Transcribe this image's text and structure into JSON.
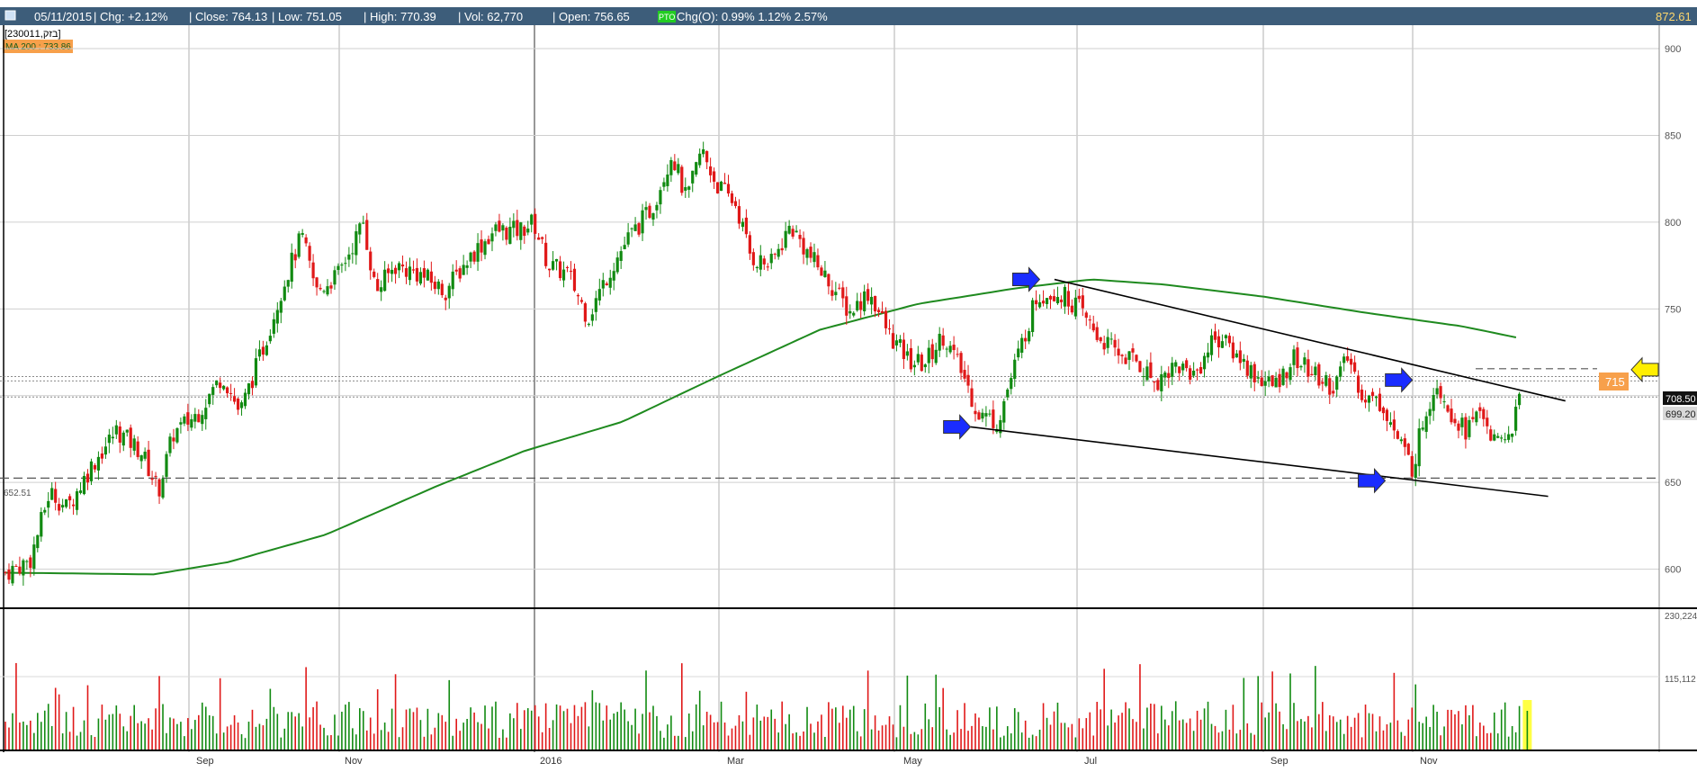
{
  "header": {
    "date": "05/11/2015",
    "chg": "| Chg: +2.12%",
    "close": "| Close: 764.13",
    "low": "| Low: 751.05",
    "high": "| High: 770.39",
    "vol": "| Vol: 62,770",
    "open": "| Open: 756.65",
    "pro_badge": "PTO",
    "chg_o": "Chg(O): 0.99% 1.12% 2.57%",
    "current_price": "872.61"
  },
  "legend": {
    "symbol": "[230011,בזק]",
    "ma_label": "MA 200 : 733.86"
  },
  "price_labels": {
    "last_price": "708.50",
    "level_699": "699.20",
    "target": "715",
    "support": "652.51"
  },
  "volume_labels": {
    "top": "230,224",
    "mid": "115,112"
  },
  "colors": {
    "up": "#118a11",
    "down": "#e01818",
    "ma": "#1f8a1f",
    "header_bg": "#3d5d7a",
    "arrow_blue": "#1a2cff",
    "arrow_yellow": "#ffee00",
    "target_box": "#f7a04b"
  },
  "chart_data": {
    "type": "candlestick",
    "series_description": "daily OHLC with volume and 200-day moving average",
    "x_ticks": [
      "Sep",
      "Nov",
      "2016",
      "Mar",
      "May",
      "Jul",
      "Sep",
      "Nov"
    ],
    "y_ticks": [
      600,
      650,
      700,
      750,
      800,
      850,
      900
    ],
    "ylim": [
      580,
      910
    ],
    "volume_ticks": [
      "115,112",
      "230,224"
    ],
    "price_anchors": [
      {
        "d": 0,
        "p": 598
      },
      {
        "d": 10,
        "p": 605
      },
      {
        "d": 18,
        "p": 645
      },
      {
        "d": 25,
        "p": 635
      },
      {
        "d": 35,
        "p": 660
      },
      {
        "d": 45,
        "p": 680
      },
      {
        "d": 55,
        "p": 668
      },
      {
        "d": 62,
        "p": 645
      },
      {
        "d": 68,
        "p": 678
      },
      {
        "d": 78,
        "p": 690
      },
      {
        "d": 88,
        "p": 712
      },
      {
        "d": 95,
        "p": 690
      },
      {
        "d": 105,
        "p": 730
      },
      {
        "d": 112,
        "p": 762
      },
      {
        "d": 120,
        "p": 792
      },
      {
        "d": 126,
        "p": 760
      },
      {
        "d": 135,
        "p": 770
      },
      {
        "d": 145,
        "p": 800
      },
      {
        "d": 150,
        "p": 760
      },
      {
        "d": 158,
        "p": 775
      },
      {
        "d": 168,
        "p": 770
      },
      {
        "d": 178,
        "p": 760
      },
      {
        "d": 188,
        "p": 780
      },
      {
        "d": 198,
        "p": 795
      },
      {
        "d": 208,
        "p": 795
      },
      {
        "d": 214,
        "p": 800
      },
      {
        "d": 220,
        "p": 775
      },
      {
        "d": 228,
        "p": 770
      },
      {
        "d": 236,
        "p": 745
      },
      {
        "d": 244,
        "p": 770
      },
      {
        "d": 252,
        "p": 790
      },
      {
        "d": 262,
        "p": 808
      },
      {
        "d": 270,
        "p": 840
      },
      {
        "d": 276,
        "p": 812
      },
      {
        "d": 282,
        "p": 842
      },
      {
        "d": 288,
        "p": 822
      },
      {
        "d": 296,
        "p": 810
      },
      {
        "d": 302,
        "p": 780
      },
      {
        "d": 310,
        "p": 775
      },
      {
        "d": 318,
        "p": 798
      },
      {
        "d": 326,
        "p": 780
      },
      {
        "d": 334,
        "p": 765
      },
      {
        "d": 342,
        "p": 748
      },
      {
        "d": 350,
        "p": 760
      },
      {
        "d": 358,
        "p": 735
      },
      {
        "d": 366,
        "p": 720
      },
      {
        "d": 372,
        "p": 718
      },
      {
        "d": 380,
        "p": 735
      },
      {
        "d": 388,
        "p": 712
      },
      {
        "d": 394,
        "p": 690
      },
      {
        "d": 402,
        "p": 685
      },
      {
        "d": 410,
        "p": 722
      },
      {
        "d": 418,
        "p": 758
      },
      {
        "d": 426,
        "p": 760
      },
      {
        "d": 434,
        "p": 752
      },
      {
        "d": 442,
        "p": 735
      },
      {
        "d": 450,
        "p": 725
      },
      {
        "d": 458,
        "p": 720
      },
      {
        "d": 466,
        "p": 708
      },
      {
        "d": 474,
        "p": 718
      },
      {
        "d": 482,
        "p": 712
      },
      {
        "d": 490,
        "p": 735
      },
      {
        "d": 498,
        "p": 725
      },
      {
        "d": 506,
        "p": 712
      },
      {
        "d": 514,
        "p": 705
      },
      {
        "d": 522,
        "p": 722
      },
      {
        "d": 530,
        "p": 712
      },
      {
        "d": 538,
        "p": 705
      },
      {
        "d": 544,
        "p": 722
      },
      {
        "d": 550,
        "p": 700
      },
      {
        "d": 558,
        "p": 695
      },
      {
        "d": 564,
        "p": 675
      },
      {
        "d": 570,
        "p": 658
      },
      {
        "d": 575,
        "p": 690
      },
      {
        "d": 580,
        "p": 708
      },
      {
        "d": 586,
        "p": 690
      },
      {
        "d": 592,
        "p": 680
      },
      {
        "d": 598,
        "p": 692
      },
      {
        "d": 604,
        "p": 670
      },
      {
        "d": 610,
        "p": 680
      },
      {
        "d": 614,
        "p": 700
      }
    ],
    "ma200_anchors": [
      {
        "d": 0,
        "p": 598
      },
      {
        "d": 60,
        "p": 597
      },
      {
        "d": 90,
        "p": 604
      },
      {
        "d": 130,
        "p": 620
      },
      {
        "d": 175,
        "p": 648
      },
      {
        "d": 210,
        "p": 668
      },
      {
        "d": 250,
        "p": 685
      },
      {
        "d": 290,
        "p": 712
      },
      {
        "d": 330,
        "p": 738
      },
      {
        "d": 370,
        "p": 753
      },
      {
        "d": 410,
        "p": 762
      },
      {
        "d": 440,
        "p": 767
      },
      {
        "d": 470,
        "p": 764
      },
      {
        "d": 510,
        "p": 757
      },
      {
        "d": 550,
        "p": 748
      },
      {
        "d": 590,
        "p": 740
      },
      {
        "d": 614,
        "p": 733
      }
    ],
    "trendlines": [
      {
        "name": "upper",
        "from": {
          "d": 425,
          "p": 767
        },
        "to": {
          "d": 632,
          "p": 697
        }
      },
      {
        "name": "lower",
        "from": {
          "d": 391,
          "p": 682
        },
        "to": {
          "d": 625,
          "p": 642
        }
      }
    ],
    "horizontal_levels": [
      {
        "value": 715,
        "style": "dashed-to-target"
      },
      {
        "value": 711,
        "style": "dotted"
      },
      {
        "value": 708.5,
        "style": "dotted"
      },
      {
        "value": 699.2,
        "style": "dotted"
      },
      {
        "value": 652.51,
        "style": "dashed"
      }
    ],
    "annotations": [
      {
        "type": "arrow-right",
        "color": "blue",
        "at": {
          "d": 419,
          "p": 767
        }
      },
      {
        "type": "arrow-right",
        "color": "blue",
        "at": {
          "d": 391,
          "p": 682
        }
      },
      {
        "type": "arrow-right",
        "color": "blue",
        "at": {
          "d": 570,
          "p": 709
        }
      },
      {
        "type": "arrow-right",
        "color": "blue",
        "at": {
          "d": 559,
          "p": 651
        }
      },
      {
        "type": "arrow-left",
        "color": "yellow",
        "at_value": 715
      }
    ]
  }
}
